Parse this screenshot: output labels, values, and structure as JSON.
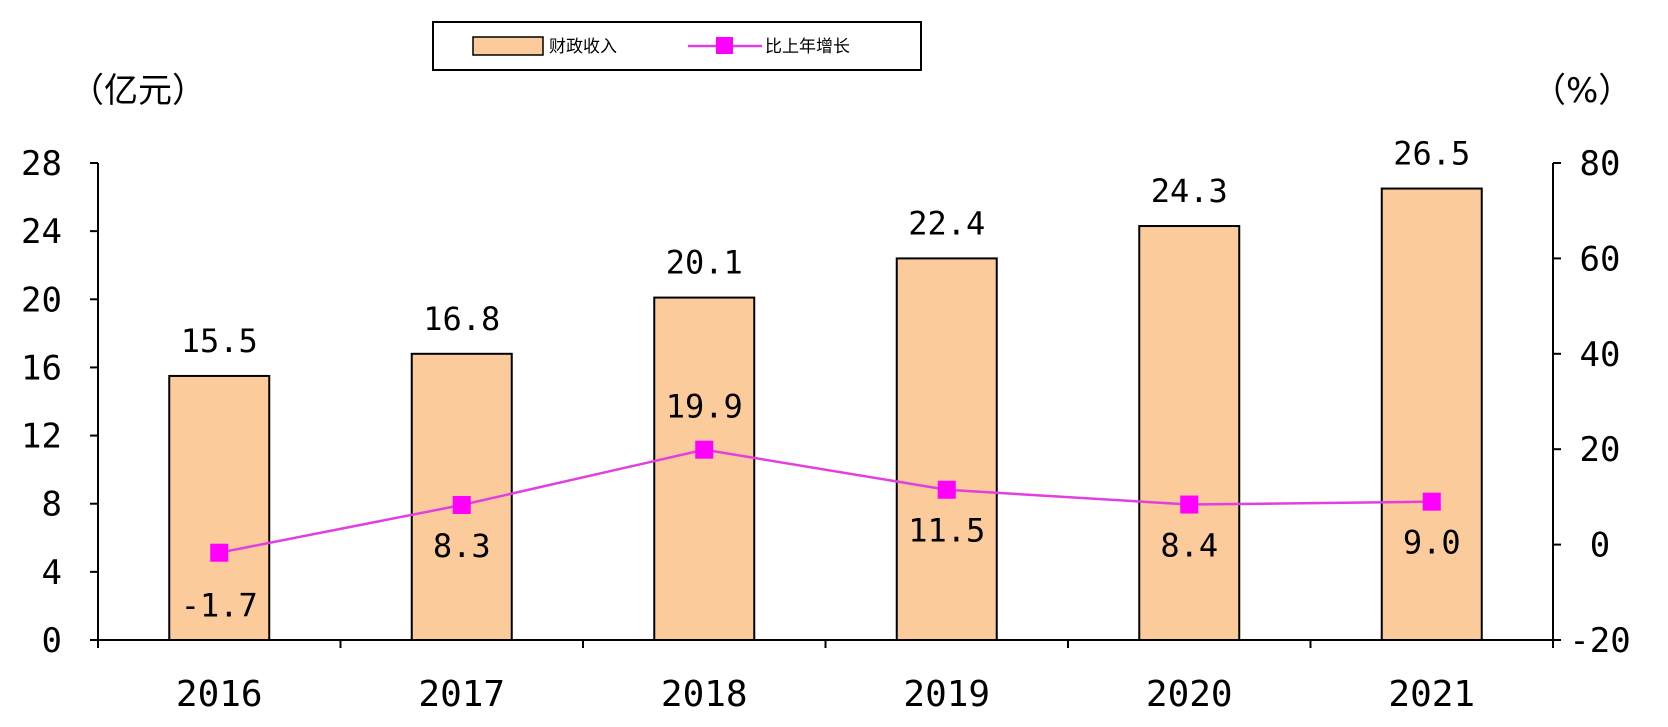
{
  "chart_data": {
    "type": "bar",
    "categories": [
      "2016",
      "2017",
      "2018",
      "2019",
      "2020",
      "2021"
    ],
    "series": [
      {
        "name": "财政收入",
        "kind": "bar",
        "axis": "left",
        "values": [
          15.5,
          16.8,
          20.1,
          22.4,
          24.3,
          26.5
        ],
        "labels": [
          "15.5",
          "16.8",
          "20.1",
          "22.4",
          "24.3",
          "26.5"
        ],
        "color": "#FBCB9B"
      },
      {
        "name": "比上年增长",
        "kind": "line",
        "axis": "right",
        "values": [
          -1.7,
          8.3,
          19.9,
          11.5,
          8.4,
          9.0
        ],
        "labels": [
          "-1.7",
          "8.3",
          "19.9",
          "11.5",
          "8.4",
          "9.0"
        ],
        "color": "#E040E0",
        "marker_color": "#FF00FF"
      }
    ],
    "y_left": {
      "label": "（亿元）",
      "range": [
        0,
        28
      ],
      "ticks": [
        "0",
        "4",
        "8",
        "12",
        "16",
        "20",
        "24",
        "28"
      ]
    },
    "y_right": {
      "label": "（%）",
      "range": [
        -20,
        80
      ],
      "ticks": [
        "-20",
        "0",
        "20",
        "40",
        "60",
        "80"
      ]
    },
    "grid": false,
    "legend_position": "top-center"
  }
}
